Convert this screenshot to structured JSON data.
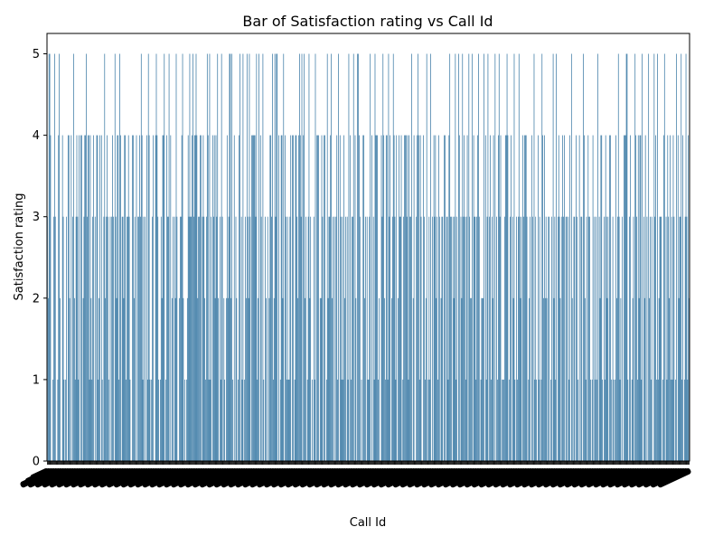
{
  "chart_data": {
    "type": "bar",
    "title": "Bar of Satisfaction rating vs Call Id",
    "xlabel": "Call Id",
    "ylabel": "Satisfaction rating",
    "ylim": [
      0,
      5.25
    ],
    "yticks": [
      0,
      1,
      2,
      3,
      4,
      5
    ],
    "grid": false,
    "bar_color": "#3274a1",
    "values": [
      3,
      2,
      5,
      5,
      4,
      0,
      0,
      1,
      3,
      5,
      3,
      0,
      0,
      1,
      4,
      5,
      2,
      0,
      0,
      4,
      3,
      1,
      0,
      1,
      3,
      0,
      4,
      4,
      2,
      0,
      4,
      0,
      3,
      5,
      2,
      1,
      3,
      4,
      3,
      1,
      4,
      0,
      4,
      4,
      0,
      2,
      3,
      4,
      4,
      5,
      3,
      4,
      4,
      1,
      4,
      2,
      1,
      3,
      4,
      0,
      3,
      0,
      4,
      4,
      1,
      2,
      4,
      0,
      4,
      1,
      0,
      3,
      5,
      2,
      3,
      4,
      3,
      1,
      0,
      3,
      0,
      3,
      4,
      3,
      0,
      5,
      3,
      2,
      4,
      4,
      1,
      5,
      4,
      0,
      3,
      3,
      2,
      4,
      4,
      1,
      3,
      3,
      4,
      3,
      1,
      0,
      0,
      4,
      4,
      2,
      3,
      0,
      4,
      0,
      3,
      3,
      4,
      3,
      5,
      4,
      1,
      3,
      0,
      3,
      0,
      4,
      1,
      5,
      4,
      1,
      0,
      1,
      3,
      4,
      0,
      0,
      4,
      5,
      4,
      3,
      1,
      0,
      1,
      3,
      2,
      4,
      4,
      5,
      0,
      1,
      4,
      3,
      3,
      5,
      0,
      4,
      0,
      2,
      3,
      0,
      3,
      2,
      5,
      3,
      0,
      0,
      2,
      3,
      3,
      4,
      5,
      2,
      0,
      1,
      0,
      1,
      2,
      4,
      3,
      5,
      3,
      3,
      4,
      5,
      3,
      4,
      4,
      5,
      4,
      2,
      3,
      3,
      4,
      4,
      0,
      3,
      4,
      3,
      2,
      1,
      3,
      5,
      4,
      1,
      5,
      1,
      3,
      0,
      4,
      3,
      4,
      2,
      4,
      3,
      5,
      2,
      0,
      3,
      1,
      5,
      3,
      0,
      2,
      1,
      0,
      2,
      4,
      2,
      3,
      5,
      5,
      2,
      5,
      1,
      0,
      4,
      0,
      3,
      2,
      0,
      1,
      4,
      5,
      0,
      3,
      1,
      5,
      0,
      1,
      3,
      2,
      5,
      3,
      2,
      5,
      3,
      0,
      4,
      4,
      4,
      4,
      4,
      3,
      5,
      1,
      2,
      5,
      0,
      4,
      3,
      0,
      5,
      1,
      0,
      3,
      2,
      0,
      3,
      0,
      2,
      4,
      4,
      3,
      5,
      1,
      2,
      5,
      3,
      5,
      5,
      0,
      4,
      0,
      1,
      4,
      4,
      2,
      5,
      0,
      4,
      3,
      1,
      3,
      1,
      1,
      3,
      4,
      0,
      4,
      4,
      0,
      1,
      4,
      4,
      3,
      2,
      4,
      5,
      4,
      3,
      5,
      0,
      4,
      5,
      2,
      3,
      0,
      1,
      3,
      5,
      2,
      3,
      0,
      1,
      0,
      3,
      1,
      5,
      0,
      4,
      4,
      4,
      0,
      2,
      2,
      4,
      3,
      0,
      4,
      4,
      0,
      1,
      5,
      2,
      3,
      3,
      4,
      5,
      2,
      3,
      0,
      3,
      0,
      3,
      4,
      1,
      5,
      0,
      4,
      3,
      1,
      3,
      1,
      4,
      2,
      3,
      0,
      3,
      1,
      5,
      0,
      4,
      1,
      3,
      3,
      5,
      0,
      4,
      2,
      0,
      5,
      5,
      4,
      3,
      0,
      1,
      0,
      4,
      4,
      2,
      3,
      0,
      3,
      1,
      1,
      3,
      5,
      0,
      4,
      0,
      3,
      1,
      5,
      4,
      4,
      4,
      1,
      2,
      0,
      0,
      4,
      3,
      5,
      4,
      2,
      1,
      4,
      4,
      1,
      5,
      3,
      4,
      0,
      2,
      3,
      5,
      4,
      3,
      1,
      4,
      0,
      2,
      4,
      3,
      3,
      4,
      0,
      1,
      3,
      4,
      4,
      4,
      3,
      4,
      1,
      4,
      3,
      3,
      5,
      0,
      2,
      4,
      0,
      0,
      3,
      4,
      5,
      4,
      1,
      4,
      3,
      0,
      0,
      4,
      3,
      1,
      2,
      5,
      0,
      1,
      3,
      1,
      5,
      0,
      3,
      0,
      4,
      3,
      4,
      2,
      3,
      1,
      4,
      3,
      0,
      2,
      3,
      3,
      0,
      4,
      4,
      0,
      3,
      3,
      1,
      4,
      5,
      3,
      3,
      0,
      3,
      2,
      3,
      5,
      1,
      3,
      0,
      5,
      4,
      0,
      3,
      2,
      5,
      3,
      4,
      3,
      1,
      3,
      4,
      0,
      5,
      3,
      2,
      2,
      5,
      0,
      4,
      3,
      3,
      1,
      3,
      4,
      5,
      3,
      0,
      1,
      2,
      2,
      2,
      5,
      0,
      4,
      1,
      3,
      5,
      0,
      3,
      4,
      1,
      3,
      2,
      4,
      0,
      5,
      0,
      3,
      1,
      4,
      5,
      3,
      4,
      0,
      1,
      1,
      1,
      3,
      4,
      4,
      5,
      4,
      0,
      1,
      3,
      4,
      0,
      3,
      2,
      5,
      1,
      0,
      3,
      1,
      3,
      5,
      3,
      2,
      3,
      0,
      4,
      3,
      4,
      4,
      4,
      3,
      0,
      1,
      2,
      3,
      0,
      4,
      3,
      0,
      5,
      1,
      3,
      1,
      0,
      4,
      1,
      3,
      0,
      1,
      5,
      4,
      2,
      4,
      2,
      3,
      2,
      0,
      3,
      3,
      0,
      1,
      3,
      0,
      5,
      2,
      3,
      1,
      5,
      0,
      3,
      4,
      3,
      2,
      0,
      3,
      4,
      3,
      4,
      0,
      3,
      3,
      0,
      3,
      1,
      4,
      0,
      5,
      2,
      0,
      3,
      3,
      0,
      4,
      3,
      1,
      0,
      4,
      0,
      3,
      3,
      0,
      5,
      4,
      2,
      1,
      3,
      0,
      4,
      3,
      3,
      1,
      0,
      1,
      4,
      0,
      3,
      1,
      3,
      1,
      5,
      0,
      3,
      2,
      4,
      4,
      1,
      0,
      3,
      1,
      4,
      3,
      2,
      3,
      0,
      4,
      4,
      1,
      0,
      3,
      1,
      0,
      1,
      4,
      2,
      3,
      5,
      3,
      1,
      2,
      0,
      3,
      0,
      4,
      4,
      4,
      5,
      5,
      1,
      0,
      3,
      4,
      0,
      1,
      2,
      3,
      0,
      5,
      4,
      3,
      1,
      4,
      2,
      4,
      4,
      1,
      5,
      0,
      3,
      2,
      4,
      0,
      3,
      0,
      5,
      2,
      3,
      1,
      3,
      0,
      0,
      5,
      3,
      4,
      1,
      5,
      1,
      2,
      3,
      3,
      3,
      0,
      1,
      4,
      5,
      0,
      3,
      1,
      4,
      3,
      2,
      4,
      1,
      3,
      1,
      4,
      3,
      0,
      1,
      5,
      0,
      4,
      2,
      3,
      3,
      5,
      1,
      4,
      0,
      1,
      3,
      5,
      3,
      1,
      4,
      2
    ]
  }
}
